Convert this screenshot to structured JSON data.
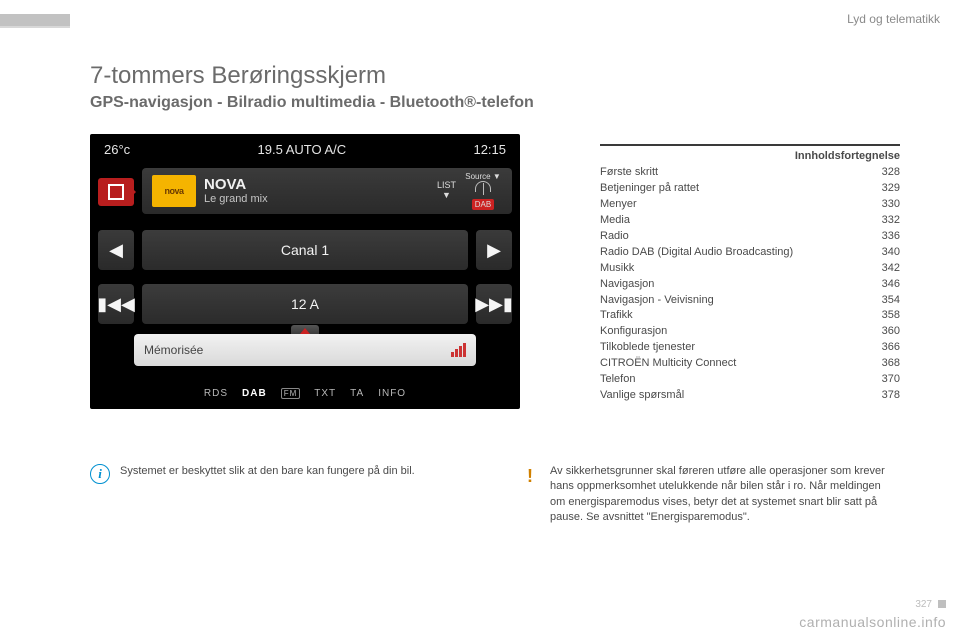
{
  "section_header": "Lyd og telematikk",
  "title": "7-tommers Berøringsskjerm",
  "subtitle": "GPS-navigasjon - Bilradio multimedia - Bluetooth®-telefon",
  "screen": {
    "temp": "26°c",
    "climate": "19.5  AUTO  A/C",
    "time": "12:15",
    "logo_text": "nova",
    "station_name": "NOVA",
    "station_tagline": "Le grand mix",
    "list_label": "LIST",
    "source_label": "Source ▼",
    "dab_badge": "DAB",
    "channel_label": "Canal 1",
    "mux_label": "12 A",
    "memorised_label": "Mémorisée",
    "bottom": {
      "rds": "RDS",
      "dab": "DAB",
      "fm": "FM",
      "txt": "TXT",
      "ta": "TA",
      "info": "INFO"
    }
  },
  "toc": {
    "heading": "Innholdsfortegnelse",
    "items": [
      {
        "label": "Første skritt",
        "page": "328"
      },
      {
        "label": "Betjeninger på rattet",
        "page": "329"
      },
      {
        "label": "Menyer",
        "page": "330"
      },
      {
        "label": "Media",
        "page": "332"
      },
      {
        "label": "Radio",
        "page": "336"
      },
      {
        "label": "Radio DAB (Digital Audio Broadcasting)",
        "page": "340"
      },
      {
        "label": "Musikk",
        "page": "342"
      },
      {
        "label": "Navigasjon",
        "page": "346"
      },
      {
        "label": "Navigasjon - Veivisning",
        "page": "354"
      },
      {
        "label": "Trafikk",
        "page": "358"
      },
      {
        "label": "Konfigurasjon",
        "page": "360"
      },
      {
        "label": "Tilkoblede tjenester",
        "page": "366"
      },
      {
        "label": "CITROËN Multicity Connect",
        "page": "368"
      },
      {
        "label": "Telefon",
        "page": "370"
      },
      {
        "label": "Vanlige spørsmål",
        "page": "378"
      }
    ]
  },
  "info_text": "Systemet er beskyttet slik at den bare kan fungere på din bil.",
  "warn_text": "Av sikkerhetsgrunner skal føreren utføre alle operasjoner som krever hans oppmerksomhet utelukkende når bilen står i ro. Når meldingen om energisparemodus vises, betyr det at systemet snart blir satt på pause. Se avsnittet \"Energisparemodus\".",
  "footer": {
    "page_number": "327",
    "brand": "carmanualsonline.info"
  },
  "colors": {
    "text": "#4a4a4a",
    "accent_red": "#b81e1e",
    "accent_blue": "#0090d0",
    "accent_orange": "#d08000"
  }
}
